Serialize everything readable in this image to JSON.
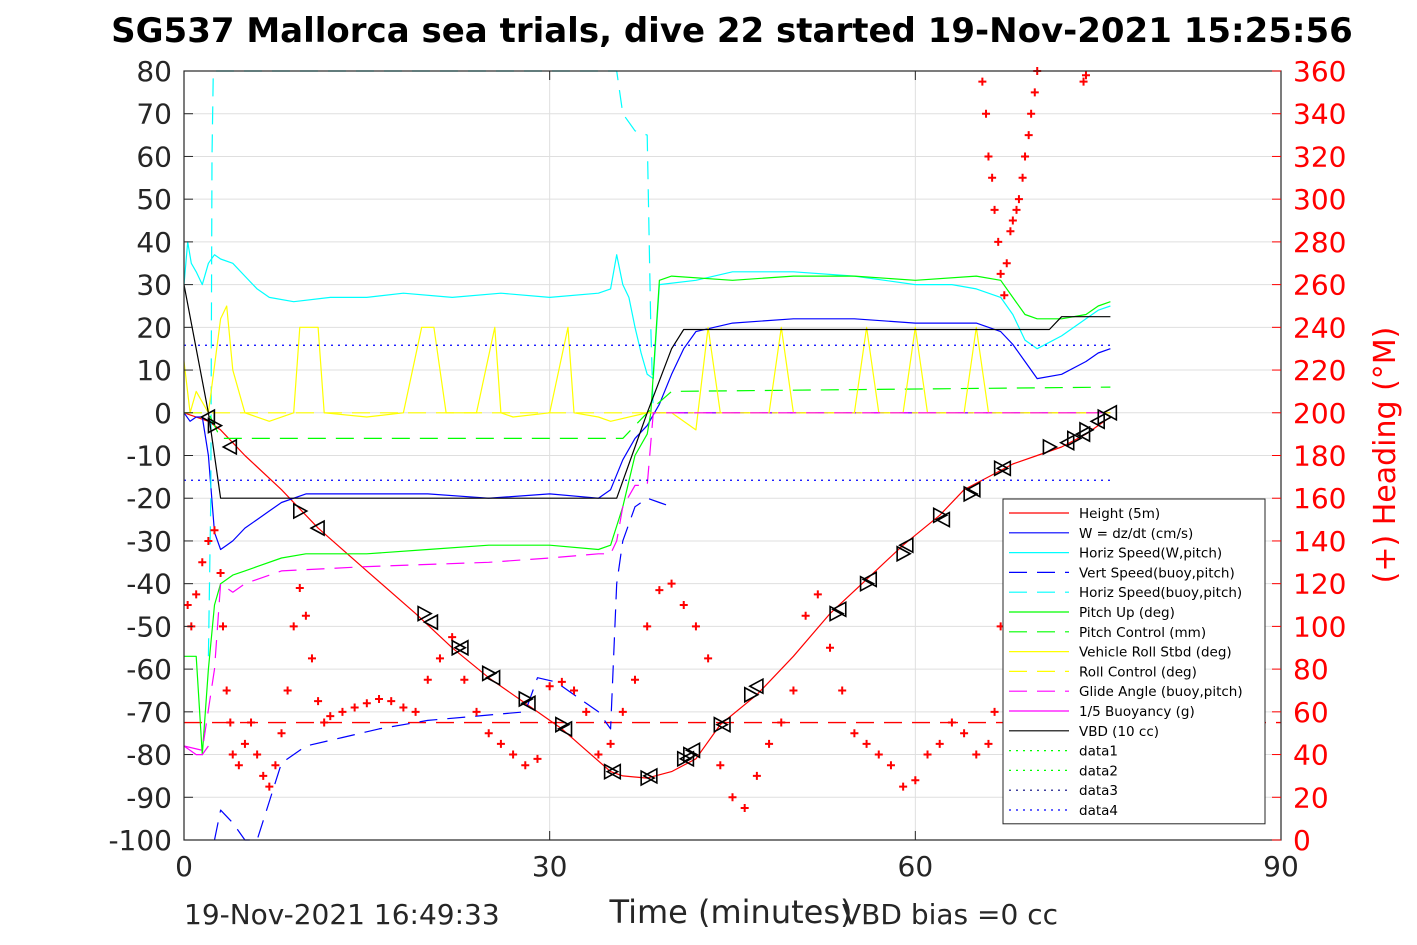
{
  "chart_data": {
    "type": "line",
    "title": "SG537 Mallorca sea trials, dive 22 started 19-Nov-2021 15:25:56",
    "xlabel": "Time (minutes)",
    "ylabel_left": "",
    "ylabel_right": "(+) Heading (°M)",
    "xlim": [
      0,
      90
    ],
    "ylim_left": [
      -100,
      80
    ],
    "ylim_right": [
      0,
      360
    ],
    "xticks": [
      0,
      30,
      60,
      90
    ],
    "yticks_left": [
      80,
      70,
      60,
      50,
      40,
      30,
      20,
      10,
      0,
      -10,
      -20,
      -30,
      -40,
      -50,
      -60,
      -70,
      -80,
      -90,
      -100
    ],
    "yticks_right": [
      360,
      340,
      320,
      300,
      280,
      260,
      240,
      220,
      200,
      180,
      160,
      140,
      120,
      100,
      80,
      60,
      40,
      20,
      0
    ],
    "grid": true,
    "legend_position": "bottom-right",
    "footer_left": "19-Nov-2021 16:49:33",
    "footer_right": "VBD bias =0 cc",
    "colors": {
      "red": "#ff0000",
      "blue": "#0000ff",
      "cyan": "#00ffff",
      "green": "#00ff00",
      "yellow": "#ffff00",
      "magenta": "#ff00ff",
      "black": "#000000",
      "axis": "#262626",
      "grid": "#dfdfdf",
      "purple": "#9900ff"
    },
    "series": [
      {
        "name": "Height (5m)",
        "color": "#ff0000",
        "style": "solid",
        "x": [
          0.0,
          2.0,
          3.0,
          5.0,
          8.0,
          11.0,
          15.0,
          19.0,
          22.0,
          25.0,
          28.0,
          31.0,
          33.0,
          35.0,
          36.0,
          38.0,
          40.0,
          42.0,
          44.0,
          47.0,
          50.0,
          53.0,
          56.0,
          59.0,
          62.0,
          64.0,
          66.0,
          68.0,
          70.0,
          72.0,
          74.0,
          76.0
        ],
        "y": [
          0,
          -2,
          -4,
          -10,
          -18,
          -27,
          -37,
          -47,
          -55,
          -62,
          -68,
          -74,
          -79,
          -84,
          -85,
          -85.5,
          -84,
          -81,
          -73,
          -66,
          -57,
          -47,
          -39,
          -31,
          -24,
          -18,
          -15,
          -12,
          -10,
          -8,
          -5,
          -1
        ]
      },
      {
        "name": "W = dz/dt (cm/s)",
        "color": "#0000ff",
        "style": "solid",
        "x": [
          0.0,
          0.5,
          1.0,
          1.5,
          2.0,
          2.5,
          3.0,
          3.5,
          4.0,
          5.0,
          6.0,
          7.0,
          8.0,
          10.0,
          15.0,
          20.0,
          25.0,
          30.0,
          34.0,
          35.0,
          36.0,
          37.0,
          38.0,
          39.0,
          40.0,
          41.0,
          42.0,
          45.0,
          50.0,
          55.0,
          60.0,
          65.0,
          67.0,
          68.0,
          69.0,
          70.0,
          72.0,
          74.0,
          75.0,
          76.0
        ],
        "y": [
          0,
          -2,
          -1,
          -1,
          -10,
          -28,
          -32,
          -31,
          -30,
          -27,
          -25,
          -23,
          -21,
          -19,
          -19,
          -19,
          -20,
          -19,
          -20,
          -18,
          -11,
          -6,
          -3,
          2,
          9,
          15,
          19,
          21,
          22,
          22,
          21,
          21,
          19,
          16,
          12,
          8,
          9,
          12,
          14,
          15
        ]
      },
      {
        "name": "Horiz Speed(W,pitch)",
        "color": "#00ffff",
        "style": "solid",
        "x": [
          0.0,
          0.3,
          0.6,
          1.0,
          1.5,
          2.0,
          2.5,
          3.0,
          4.0,
          5.0,
          6.0,
          7.0,
          9.0,
          12.0,
          15.0,
          18.0,
          22.0,
          26.0,
          30.0,
          34.0,
          35.0,
          35.5,
          36.0,
          36.5,
          37.0,
          37.5,
          38.0,
          38.5,
          39.0,
          42.0,
          45.0,
          50.0,
          55.0,
          60.0,
          63.0,
          65.0,
          67.0,
          68.0,
          69.0,
          70.0,
          72.0,
          74.0,
          75.0,
          76.0
        ],
        "y": [
          30,
          40,
          35,
          33,
          30,
          35,
          37,
          36,
          35,
          32,
          29,
          27,
          26,
          27,
          27,
          28,
          27,
          28,
          27,
          28,
          29,
          37,
          30,
          27,
          20,
          14,
          9,
          8,
          30,
          31,
          33,
          33,
          32,
          30,
          30,
          29,
          27,
          23,
          17,
          15,
          18,
          22,
          24,
          25
        ]
      },
      {
        "name": "Vert Speed(buoy,pitch)",
        "color": "#0000ff",
        "style": "dashed",
        "x": [
          2.5,
          3.0,
          4.0,
          5.0,
          6.0,
          8.0,
          10.0,
          13.0,
          16.0,
          20.0,
          24.0,
          28.0,
          29.0,
          30.5,
          31.5,
          34.0,
          35.0,
          35.5,
          36.0,
          37.0,
          38.0,
          39.0,
          40.0
        ],
        "y": [
          -100,
          -93,
          -96,
          -100,
          -100,
          -82,
          -78,
          -76,
          -74,
          -72,
          -71,
          -70,
          -62,
          -63,
          -65,
          -70,
          -74,
          -40,
          -30,
          -22,
          -20,
          -21,
          -22
        ]
      },
      {
        "name": "Horiz Speed(buoy,pitch)",
        "color": "#00ffff",
        "style": "dashed",
        "x": [
          2.0,
          2.2,
          2.3,
          2.4,
          35.5,
          36.0,
          37.0,
          38.0,
          38.3,
          38.5
        ],
        "y": [
          -57,
          -20,
          60,
          80,
          80,
          70,
          66,
          65,
          20,
          0
        ]
      },
      {
        "name": "Pitch Up (deg)",
        "color": "#00ff00",
        "style": "solid",
        "x": [
          0.0,
          1.0,
          1.5,
          2.0,
          2.5,
          3.0,
          4.0,
          5.0,
          6.0,
          8.0,
          10.0,
          15.0,
          20.0,
          25.0,
          30.0,
          34.0,
          35.0,
          36.0,
          37.0,
          38.0,
          38.3,
          39.0,
          40.0,
          45.0,
          50.0,
          55.0,
          60.0,
          65.0,
          67.0,
          68.0,
          69.0,
          70.0,
          72.0,
          74.0,
          75.0,
          76.0
        ],
        "y": [
          -57,
          -57,
          -80,
          -60,
          -45,
          -40,
          -38,
          -37,
          -36,
          -34,
          -33,
          -33,
          -32,
          -31,
          -31,
          -32,
          -31,
          -22,
          -10,
          -5,
          0,
          31,
          32,
          31,
          32,
          32,
          31,
          32,
          31,
          27,
          23,
          22,
          22,
          23,
          25,
          26
        ]
      },
      {
        "name": "Pitch Control (mm)",
        "color": "#00ff00",
        "style": "dashed",
        "x": [
          0.0,
          2.0,
          3.0,
          35.0,
          36.0,
          38.0,
          40.0,
          76.0
        ],
        "y": [
          0,
          0,
          -6,
          -6,
          -6,
          0,
          5,
          6
        ]
      },
      {
        "name": "Vehicle Roll Stbd (deg)",
        "color": "#ffff00",
        "style": "solid",
        "x": [
          0.0,
          0.5,
          1.0,
          2.0,
          3.0,
          3.5,
          4.0,
          5.0,
          7.0,
          9.0,
          9.5,
          11.0,
          11.5,
          15.0,
          18.0,
          19.5,
          20.5,
          21.5,
          24.0,
          25.5,
          26.0,
          27.0,
          30.0,
          31.5,
          32.0,
          34.0,
          35.0,
          38.0,
          40.0,
          42.0,
          43.0,
          44.0,
          48.0,
          49.0,
          50.0,
          55.0,
          56.0,
          57.0,
          59.0,
          60.0,
          61.0,
          64.0,
          65.0,
          66.0,
          68.0,
          70.0,
          72.0,
          74.0,
          75.0,
          76.0
        ],
        "y": [
          12,
          0,
          5,
          0,
          22,
          25,
          10,
          0,
          -2,
          0,
          20,
          20,
          0,
          -1,
          0,
          20,
          20,
          0,
          0,
          20,
          0,
          -1,
          0,
          20,
          0,
          -1,
          -2,
          0,
          0,
          -4,
          20,
          0,
          0,
          20,
          0,
          0,
          20,
          0,
          0,
          20,
          0,
          0,
          20,
          0,
          0,
          0,
          0,
          0,
          0,
          0
        ]
      },
      {
        "name": "Roll Control (deg)",
        "color": "#ffff00",
        "style": "dashed",
        "x": [
          0.0,
          38.0,
          38.5,
          76.0
        ],
        "y": [
          0,
          0,
          0,
          0
        ]
      },
      {
        "name": "Glide Angle (buoy,pitch)",
        "color": "#ff00ff",
        "style": "dashed",
        "x": [
          0.0,
          1.5,
          2.5,
          3.0,
          4.0,
          5.0,
          8.0,
          15.0,
          25.0,
          30.0,
          34.0,
          35.0,
          35.5,
          36.0,
          37.0,
          38.0,
          38.5,
          40.0,
          76.0
        ],
        "y": [
          -78,
          -79,
          -60,
          -40,
          -42,
          -40,
          -37,
          -36,
          -35,
          -34,
          -33,
          -33,
          -30,
          -22,
          -17,
          -17,
          0,
          0,
          0
        ]
      },
      {
        "name": "1/5 Buoyancy (g)",
        "color": "#ff00ff",
        "style": "solid",
        "x": [
          0.0,
          1.0,
          1.5,
          2.0
        ],
        "y": [
          -78,
          -80,
          -80,
          -78
        ]
      },
      {
        "name": "VBD (10 cc)",
        "color": "#000000",
        "style": "solid",
        "x": [
          0.0,
          2.0,
          2.5,
          3.0,
          20.0,
          30.0,
          35.0,
          35.5,
          38.0,
          40.0,
          41.0,
          45.0,
          60.0,
          70.0,
          71.0,
          72.0,
          76.0
        ],
        "y": [
          30,
          0,
          -10,
          -20,
          -20,
          -20,
          -20,
          -20,
          0,
          15,
          19.5,
          19.5,
          19.5,
          19.5,
          19.5,
          22.5,
          22.5
        ]
      },
      {
        "name": "data1",
        "color": "#00ff00",
        "style": "dotted",
        "x": [],
        "y": []
      },
      {
        "name": "data2",
        "color": "#00ff00",
        "style": "dotted",
        "x": [],
        "y": []
      },
      {
        "name": "data3",
        "color": "#000080",
        "style": "dotted",
        "x": [],
        "y": []
      },
      {
        "name": "data4",
        "color": "#0000ff",
        "style": "dotted",
        "x": [
          0,
          76,
          0,
          76
        ],
        "y": [
          15.8,
          15.8,
          -15.8,
          -15.8
        ]
      }
    ],
    "horizontal_lines": [
      {
        "y": -72.5,
        "color": "#ff0000",
        "style": "dashed"
      },
      {
        "y": 0,
        "color": "#9900ff",
        "style": "dashed",
        "x_range": [
          38,
          76
        ]
      }
    ],
    "heading_points": {
      "x": [
        0.3,
        0.6,
        1.0,
        1.5,
        2.0,
        2.5,
        3.0,
        3.2,
        3.5,
        3.8,
        4.0,
        4.5,
        5.0,
        5.5,
        6.0,
        6.5,
        7.0,
        7.5,
        8.0,
        8.5,
        9.0,
        9.5,
        10.0,
        10.5,
        11.0,
        11.5,
        12.0,
        13.0,
        14.0,
        15.0,
        16.0,
        17.0,
        18.0,
        19.0,
        20.0,
        21.0,
        22.0,
        23.0,
        24.0,
        25.0,
        26.0,
        27.0,
        28.0,
        29.0,
        30.0,
        31.0,
        32.0,
        33.0,
        34.0,
        35.0,
        36.0,
        37.0,
        38.0,
        39.0,
        40.0,
        41.0,
        42.0,
        43.0,
        44.0,
        45.0,
        46.0,
        47.0,
        48.0,
        49.0,
        50.0,
        51.0,
        52.0,
        53.0,
        54.0,
        55.0,
        56.0,
        57.0,
        58.0,
        59.0,
        60.0,
        61.0,
        62.0,
        63.0,
        64.0,
        65.0,
        66.0,
        66.5,
        67.0,
        67.5,
        68.0,
        68.5,
        69.0,
        69.5,
        70.0,
        74.0,
        74.5
      ],
      "y": [
        110,
        100,
        115,
        130,
        140,
        145,
        125,
        100,
        70,
        55,
        40,
        35,
        45,
        55,
        40,
        30,
        25,
        35,
        50,
        70,
        100,
        118,
        105,
        85,
        65,
        55,
        58,
        60,
        62,
        64,
        66,
        65,
        62,
        60,
        75,
        85,
        95,
        75,
        60,
        50,
        45,
        40,
        35,
        38,
        72,
        74,
        70,
        60,
        40,
        45,
        60,
        75,
        100,
        117,
        120,
        110,
        100,
        85,
        35,
        20,
        15,
        30,
        45,
        55,
        70,
        105,
        115,
        90,
        70,
        50,
        45,
        40,
        35,
        25,
        28,
        40,
        45,
        55,
        50,
        40,
        45,
        60,
        100,
        110,
        100,
        75,
        50,
        45,
        40,
        50,
        40
      ]
    },
    "heading_points_2": {
      "x": [
        65.5,
        65.8,
        66.0,
        66.3,
        66.5,
        66.8,
        67.0,
        67.3,
        67.5,
        67.8,
        68.0,
        68.3,
        68.5,
        68.8,
        69.0,
        69.3,
        69.5,
        69.8,
        70.0,
        73.8,
        74.0
      ],
      "y": [
        355,
        340,
        320,
        310,
        295,
        280,
        265,
        255,
        270,
        285,
        290,
        295,
        300,
        310,
        320,
        330,
        340,
        350,
        360,
        355,
        358
      ]
    },
    "triangle_markers": {
      "x": [
        2.0,
        2.5,
        3.8,
        9.5,
        11.0,
        19.7,
        20.3,
        22.5,
        22.8,
        25.0,
        25.4,
        28.0,
        28.3,
        31.0,
        31.3,
        35.0,
        35.3,
        38.0,
        38.3,
        41.0,
        41.3,
        41.5,
        41.8,
        44.0,
        44.3,
        46.5,
        47.0,
        53.5,
        53.8,
        56.0,
        56.3,
        59.0,
        59.3,
        62.0,
        62.3,
        64.5,
        64.8,
        67.0,
        67.3,
        71.0,
        72.5,
        73.0,
        73.8,
        74.0,
        75.0,
        75.5,
        76.0
      ],
      "y": [
        -1,
        -3,
        -8,
        -23,
        -27,
        -47,
        -49,
        -55,
        -55,
        -61,
        -62,
        -67,
        -68,
        -73,
        -74,
        -84,
        -84,
        -85.5,
        -85,
        -81,
        -81,
        -80,
        -79,
        -73,
        -73,
        -66,
        -64,
        -47,
        -46,
        -40,
        -39,
        -33,
        -31,
        -24,
        -25,
        -19,
        -18,
        -13,
        -13,
        -8,
        -7,
        -6,
        -5,
        -4,
        -2,
        -1,
        0
      ]
    }
  }
}
